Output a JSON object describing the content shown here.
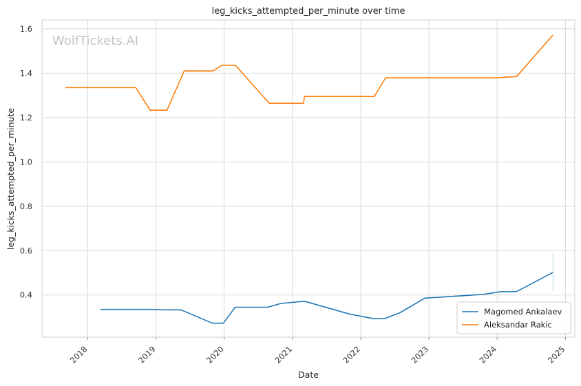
{
  "chart_data": {
    "type": "line",
    "title": "leg_kicks_attempted_per_minute over time",
    "xlabel": "Date",
    "ylabel": "leg_kicks_attempted_per_minute",
    "watermark": "WolfTickets.AI",
    "x_ticks": [
      "2018",
      "2019",
      "2020",
      "2021",
      "2022",
      "2023",
      "2024",
      "2025"
    ],
    "y_ticks": [
      "0.4",
      "0.6",
      "0.8",
      "1.0",
      "1.2",
      "1.4",
      "1.6"
    ],
    "xlim": [
      "2017-05-01",
      "2025-02-20"
    ],
    "ylim": [
      0.21,
      1.64
    ],
    "grid": true,
    "legend_position": "lower-right",
    "series": [
      {
        "name": "Magomed Ankalaev",
        "color": "#1f77b4",
        "points": [
          [
            "2018-03-10",
            0.335
          ],
          [
            "2018-12-01",
            0.335
          ],
          [
            "2019-02-10",
            0.333
          ],
          [
            "2019-05-15",
            0.333
          ],
          [
            "2019-10-30",
            0.273
          ],
          [
            "2019-12-28",
            0.273
          ],
          [
            "2020-02-29",
            0.345
          ],
          [
            "2020-08-20",
            0.345
          ],
          [
            "2020-10-31",
            0.362
          ],
          [
            "2021-03-06",
            0.372
          ],
          [
            "2021-10-30",
            0.315
          ],
          [
            "2022-03-12",
            0.293
          ],
          [
            "2022-05-07",
            0.293
          ],
          [
            "2022-07-30",
            0.32
          ],
          [
            "2022-12-10",
            0.386
          ],
          [
            "2023-10-21",
            0.403
          ],
          [
            "2024-01-20",
            0.415
          ],
          [
            "2024-04-13",
            0.415
          ],
          [
            "2024-10-26",
            0.502
          ]
        ]
      },
      {
        "name": "Aleksandar Rakic",
        "color": "#ff7f0e",
        "points": [
          [
            "2017-09-02",
            1.335
          ],
          [
            "2018-09-15",
            1.335
          ],
          [
            "2018-12-01",
            1.233
          ],
          [
            "2019-03-01",
            1.233
          ],
          [
            "2019-06-01",
            1.41
          ],
          [
            "2019-11-02",
            1.41
          ],
          [
            "2019-12-21",
            1.436
          ],
          [
            "2020-03-01",
            1.436
          ],
          [
            "2020-08-30",
            1.264
          ],
          [
            "2021-03-01",
            1.264
          ],
          [
            "2021-03-06",
            1.295
          ],
          [
            "2022-03-15",
            1.295
          ],
          [
            "2022-05-14",
            1.379
          ],
          [
            "2024-01-01",
            1.379
          ],
          [
            "2024-04-15",
            1.385
          ],
          [
            "2024-10-26",
            1.572
          ]
        ]
      }
    ]
  }
}
